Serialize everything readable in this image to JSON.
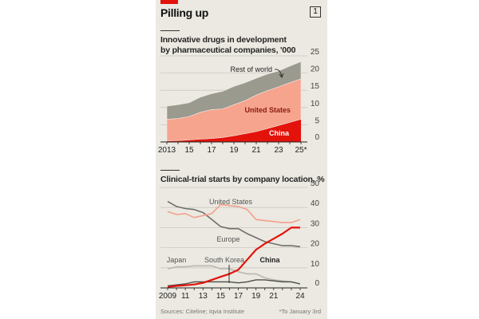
{
  "header": {
    "title": "Pilling up",
    "chart_number": "1"
  },
  "footer": {
    "sources": "Sources: Citeline; Iqvia Institute",
    "note": "*To January 3rd"
  },
  "colors": {
    "accent_red": "#e3120b",
    "china": "#e3120b",
    "united_states_area": "#f6a48d",
    "rest_of_world_area": "#9a9a8f",
    "united_states_line": "#f4a08c",
    "europe_line": "#6f6f6b",
    "japan_line": "#b9b8b0",
    "south_korea_line": "#4d4d4a",
    "background": "#ebe9e1"
  },
  "chart_data": [
    {
      "type": "area",
      "stacked": true,
      "title": "Innovative drugs in development by pharmaceutical companies, '000",
      "xlabel": "",
      "ylabel": "",
      "x": [
        2013,
        2014,
        2015,
        2016,
        2017,
        2018,
        2019,
        2020,
        2021,
        2022,
        2023,
        2024,
        2025
      ],
      "x_tick_labels": [
        "2013",
        "15",
        "17",
        "19",
        "21",
        "23",
        "25*"
      ],
      "x_tick_values": [
        2013,
        2015,
        2017,
        2019,
        2021,
        2023,
        2025
      ],
      "ylim": [
        0,
        25
      ],
      "y_ticks": [
        0,
        5,
        10,
        15,
        20,
        25
      ],
      "y_axis_side": "right",
      "grid": true,
      "series": [
        {
          "name": "China",
          "label": "China",
          "values": [
            0.3,
            0.4,
            0.6,
            0.8,
            1.0,
            1.3,
            1.8,
            2.4,
            3.0,
            3.9,
            4.8,
            5.7,
            6.6
          ]
        },
        {
          "name": "United States",
          "label": "United States",
          "values": [
            6.3,
            6.4,
            6.8,
            7.8,
            8.4,
            8.3,
            9.0,
            9.6,
            10.6,
            11.0,
            11.2,
            11.5,
            11.7
          ]
        },
        {
          "name": "Rest of world",
          "label": "Rest of world",
          "values": [
            3.8,
            4.0,
            4.0,
            4.4,
            4.6,
            5.1,
            5.3,
            5.2,
            4.9,
            4.8,
            4.6,
            4.8,
            5.0
          ]
        }
      ],
      "annotations": [
        "Rest of world",
        "United States",
        "China"
      ]
    },
    {
      "type": "line",
      "title": "Clinical-trial starts by company location, %",
      "xlabel": "",
      "ylabel": "",
      "x": [
        2009,
        2010,
        2011,
        2012,
        2013,
        2014,
        2015,
        2016,
        2017,
        2018,
        2019,
        2020,
        2021,
        2022,
        2023,
        2024
      ],
      "x_tick_labels": [
        "2009",
        "11",
        "13",
        "15",
        "17",
        "19",
        "21",
        "24"
      ],
      "x_tick_values": [
        2009,
        2011,
        2013,
        2015,
        2017,
        2019,
        2021,
        2024
      ],
      "ylim": [
        0,
        50
      ],
      "y_ticks": [
        0,
        10,
        20,
        30,
        40,
        50
      ],
      "y_axis_side": "right",
      "grid": true,
      "series": [
        {
          "name": "United States",
          "values": [
            38,
            36.5,
            37,
            35,
            36,
            37,
            41.5,
            41,
            40.5,
            39,
            34,
            33.5,
            33,
            32.5,
            32.5,
            34
          ]
        },
        {
          "name": "Europe",
          "values": [
            43,
            40.5,
            39.5,
            39,
            37.5,
            34,
            30.5,
            29.5,
            29.5,
            27,
            25,
            23,
            22,
            21,
            21,
            20.5
          ]
        },
        {
          "name": "China",
          "values": [
            0.5,
            1,
            1.3,
            1.7,
            2.5,
            4,
            5.5,
            7,
            9,
            14,
            19,
            22,
            24.5,
            27,
            30,
            30
          ]
        },
        {
          "name": "Japan",
          "values": [
            9.5,
            10.5,
            10.5,
            11,
            11,
            11,
            9.5,
            9.5,
            8,
            7,
            7,
            5,
            4,
            3.5,
            3,
            2
          ]
        },
        {
          "name": "South Korea",
          "values": [
            1,
            1.5,
            2,
            3,
            3,
            3,
            3,
            3,
            2.5,
            3,
            4,
            4,
            3.5,
            3,
            3,
            2
          ]
        }
      ],
      "annotations": [
        "United States",
        "Europe",
        "Japan",
        "South Korea",
        "China"
      ]
    }
  ]
}
